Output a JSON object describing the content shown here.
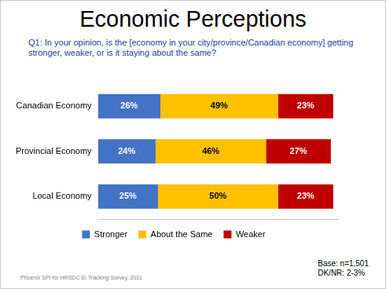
{
  "chart_data": {
    "type": "bar",
    "orientation": "horizontal",
    "stacked": true,
    "title": "Economic Perceptions",
    "subtitle": "Q1: In your opinion, is the [economy in your city/province/Canadian economy] getting stronger, weaker, or is it staying about the same?",
    "categories": [
      "Canadian Economy",
      "Provincial Economy",
      "Local Economy"
    ],
    "series": [
      {
        "name": "Stronger",
        "color": "#4472c4",
        "values": [
          26,
          24,
          25
        ],
        "value_labels": [
          "26%",
          "24%",
          "25%"
        ]
      },
      {
        "name": "About the Same",
        "color": "#ffc000",
        "values": [
          49,
          46,
          50
        ],
        "value_labels": [
          "49%",
          "46%",
          "50%"
        ]
      },
      {
        "name": "Weaker",
        "color": "#c00000",
        "values": [
          23,
          27,
          23
        ],
        "value_labels": [
          "23%",
          "27%",
          "23%"
        ]
      }
    ],
    "xlim": [
      0,
      100
    ],
    "tick_labels": "y",
    "grid": false,
    "legend": "bottom",
    "data_labels": true,
    "notes": [
      "Base: n=1,501",
      "DK/NR: 2-3%"
    ],
    "source": "Phoenix SPI for HRSDC EI Tracking Survey, 2011"
  }
}
